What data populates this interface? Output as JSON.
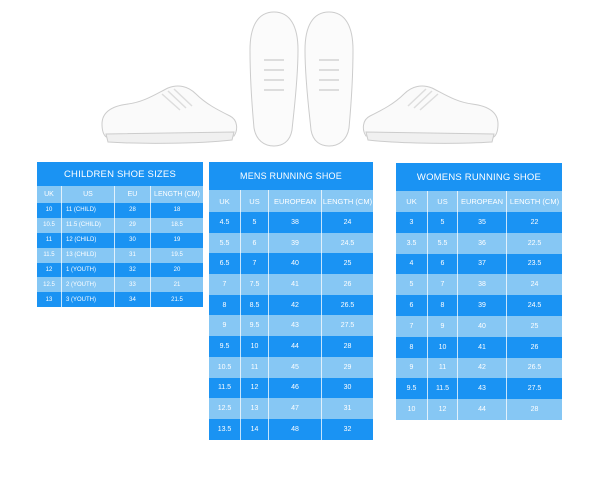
{
  "colors": {
    "dark": "#1a93f3",
    "light": "#86c7f4"
  },
  "images": [
    "side-view-shoe-left",
    "top-view-shoe-left",
    "top-view-shoe-right",
    "side-view-shoe-right"
  ],
  "tables": [
    {
      "id": "children",
      "title": "CHILDREN SHOE SIZES",
      "headers": [
        "UK",
        "US",
        "EU",
        "LENGTH (CM)"
      ],
      "rows": [
        [
          "10",
          "11 (CHILD)",
          "28",
          "18"
        ],
        [
          "10.5",
          "11.5 (CHILD)",
          "29",
          "18.5"
        ],
        [
          "11",
          "12 (CHILD)",
          "30",
          "19"
        ],
        [
          "11.5",
          "13 (CHILD)",
          "31",
          "19.5"
        ],
        [
          "12",
          "1 (YOUTH)",
          "32",
          "20"
        ],
        [
          "12.5",
          "2 (YOUTH)",
          "33",
          "21"
        ],
        [
          "13",
          "3 (YOUTH)",
          "34",
          "21.5"
        ]
      ]
    },
    {
      "id": "mens",
      "title": "MENS RUNNING SHOE",
      "headers": [
        "UK",
        "US",
        "EUROPEAN",
        "LENGTH (CM)"
      ],
      "rows": [
        [
          "4.5",
          "5",
          "38",
          "24"
        ],
        [
          "5.5",
          "6",
          "39",
          "24.5"
        ],
        [
          "6.5",
          "7",
          "40",
          "25"
        ],
        [
          "7",
          "7.5",
          "41",
          "26"
        ],
        [
          "8",
          "8.5",
          "42",
          "26.5"
        ],
        [
          "9",
          "9.5",
          "43",
          "27.5"
        ],
        [
          "9.5",
          "10",
          "44",
          "28"
        ],
        [
          "10.5",
          "11",
          "45",
          "29"
        ],
        [
          "11.5",
          "12",
          "46",
          "30"
        ],
        [
          "12.5",
          "13",
          "47",
          "31"
        ],
        [
          "13.5",
          "14",
          "48",
          "32"
        ]
      ]
    },
    {
      "id": "womens",
      "title": "WOMENS RUNNING SHOE",
      "headers": [
        "UK",
        "US",
        "EUROPEAN",
        "LENGTH (CM)"
      ],
      "rows": [
        [
          "3",
          "5",
          "35",
          "22"
        ],
        [
          "3.5",
          "5.5",
          "36",
          "22.5"
        ],
        [
          "4",
          "6",
          "37",
          "23.5"
        ],
        [
          "5",
          "7",
          "38",
          "24"
        ],
        [
          "6",
          "8",
          "39",
          "24.5"
        ],
        [
          "7",
          "9",
          "40",
          "25"
        ],
        [
          "8",
          "10",
          "41",
          "26"
        ],
        [
          "9",
          "11",
          "42",
          "26.5"
        ],
        [
          "9.5",
          "11.5",
          "43",
          "27.5"
        ],
        [
          "10",
          "12",
          "44",
          "28"
        ]
      ]
    }
  ]
}
